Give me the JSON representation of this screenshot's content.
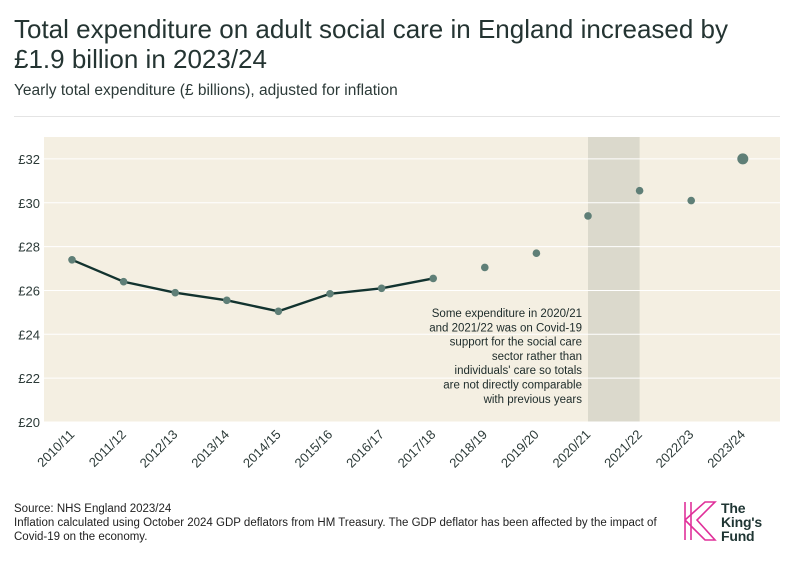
{
  "title": "Total expenditure on adult social care in England increased by £1.9 billion in 2023/24",
  "subtitle": "Yearly total expenditure (£ billions), adjusted for inflation",
  "footer": {
    "source": "Source: NHS England 2023/24",
    "note": "Inflation calculated using October 2024 GDP deflators from HM Treasury. The GDP deflator has been affected by the impact of Covid-19 on the economy."
  },
  "logo": {
    "line1": "The",
    "line2": "King's",
    "line3": "Fund"
  },
  "colors": {
    "plot_bg": "#f4efe2",
    "shade": "#dbd9cc",
    "line": "#12332f",
    "point": "#5f7f77",
    "brand": "#e0309a"
  },
  "chart_data": {
    "type": "line",
    "title": "Total expenditure on adult social care in England increased by £1.9 billion in 2023/24",
    "ylabel": "Yearly total expenditure (£ billions), adjusted for inflation",
    "xlabel": "",
    "categories": [
      "2010/11",
      "2011/12",
      "2012/13",
      "2013/14",
      "2014/15",
      "2015/16",
      "2016/17",
      "2017/18",
      "2018/19",
      "2019/20",
      "2020/21",
      "2021/22",
      "2022/23",
      "2023/24"
    ],
    "values": [
      27.4,
      26.4,
      25.9,
      25.55,
      25.05,
      25.85,
      26.1,
      26.55,
      27.05,
      27.7,
      29.4,
      30.55,
      30.1,
      32.0
    ],
    "connected_through": "2017/18",
    "highlighted_point": "2023/24",
    "shaded_range": [
      "2020/21",
      "2021/22"
    ],
    "ylim": [
      20,
      33
    ],
    "yticks": [
      20,
      22,
      24,
      26,
      28,
      30,
      32
    ],
    "ytick_labels": [
      "£20",
      "£22",
      "£24",
      "£26",
      "£28",
      "£30",
      "£32"
    ],
    "grid": true,
    "annotation": "Some expenditure in 2020/21 and 2021/22 was on Covid-19 support for the social care sector rather than individuals' care so totals are not directly comparable with previous years"
  }
}
